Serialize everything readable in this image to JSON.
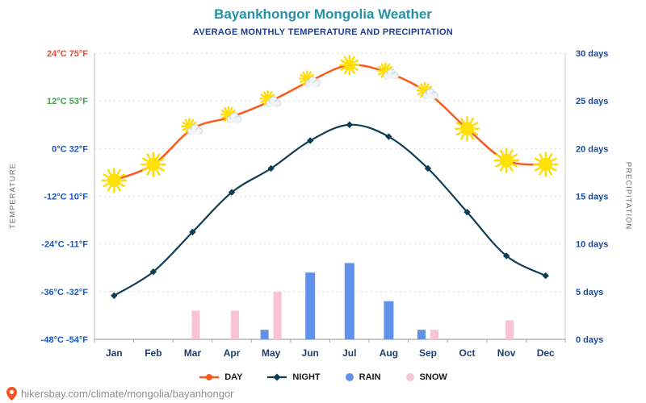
{
  "page": {
    "title": "Bayankhongor Mongolia Weather",
    "subtitle": "AVERAGE MONTHLY TEMPERATURE AND PRECIPITATION"
  },
  "theme": {
    "title_color": "#2492a6",
    "subtitle_color": "#1c3d8f",
    "month_label_color": "#1d3f6b",
    "right_axis_text_color": "#174a9e",
    "grid_color": "#dadada",
    "axis_color": "#a6a6a6",
    "footer_text_color": "#8f8f8f",
    "pin_color": "#f4511e"
  },
  "left_axis": {
    "label": "TEMPERATURE",
    "ticks": [
      {
        "text": "24°C 75°F",
        "value": 24,
        "color": "#e8472e"
      },
      {
        "text": "12°C 53°F",
        "value": 12,
        "color": "#43a047"
      },
      {
        "text": "0°C 32°F",
        "value": 0,
        "color": "#1559c8"
      },
      {
        "text": "-12°C 10°F",
        "value": -12,
        "color": "#1559c8"
      },
      {
        "text": "-24°C -11°F",
        "value": -24,
        "color": "#1559c8"
      },
      {
        "text": "-36°C -32°F",
        "value": -36,
        "color": "#1559c8"
      },
      {
        "text": "-48°C -54°F",
        "value": -48,
        "color": "#1559c8"
      }
    ]
  },
  "right_axis": {
    "label": "PRECIPITATION",
    "ticks": [
      {
        "text": "30 days",
        "value": 30
      },
      {
        "text": "25 days",
        "value": 25
      },
      {
        "text": "20 days",
        "value": 20
      },
      {
        "text": "15 days",
        "value": 15
      },
      {
        "text": "10 days",
        "value": 10
      },
      {
        "text": "5 days",
        "value": 5
      },
      {
        "text": "0 days",
        "value": 0
      }
    ]
  },
  "chart_data": {
    "type": "line+bar",
    "title": "Bayankhongor Mongolia Weather",
    "subtitle": "AVERAGE MONTHLY TEMPERATURE AND PRECIPITATION",
    "categories": [
      "Jan",
      "Feb",
      "Mar",
      "Apr",
      "May",
      "Jun",
      "Jul",
      "Aug",
      "Sep",
      "Oct",
      "Nov",
      "Dec"
    ],
    "temp_ylim": [
      -48,
      24
    ],
    "days_ylim": [
      0,
      30
    ],
    "grid": "dashed horizontal",
    "legend_position": "bottom",
    "series": [
      {
        "name": "DAY",
        "type": "line",
        "unit": "°C",
        "color": "#fa5a1e",
        "values": [
          -8,
          -4,
          5,
          8,
          12,
          17,
          21,
          19,
          14,
          5,
          -3,
          -4
        ],
        "icons": [
          "sun-large",
          "sun-large",
          "sun-cloud",
          "sun-cloud",
          "sun-cloud",
          "sun-cloud",
          "sun",
          "sun-cloud",
          "sun-cloud",
          "sun-large",
          "sun-large",
          "sun-large"
        ]
      },
      {
        "name": "NIGHT",
        "type": "line",
        "unit": "°C",
        "color": "#0e3c55",
        "marker": "diamond",
        "values": [
          -37,
          -31,
          -21,
          -11,
          -5,
          2,
          6,
          3,
          -5,
          -16,
          -27,
          -32
        ]
      },
      {
        "name": "RAIN",
        "type": "bar",
        "unit": "days",
        "color": "#6191e8",
        "values": [
          0,
          0,
          0,
          0,
          1,
          7,
          8,
          4,
          1,
          0,
          0,
          0
        ]
      },
      {
        "name": "SNOW",
        "type": "bar",
        "unit": "days",
        "color": "#f8c3d2",
        "values": [
          0,
          0,
          3,
          3,
          5,
          0,
          0,
          0,
          1,
          0,
          2,
          0
        ]
      }
    ]
  },
  "footer": {
    "url": "hikersbay.com/climate/mongolia/bayanhongor"
  }
}
